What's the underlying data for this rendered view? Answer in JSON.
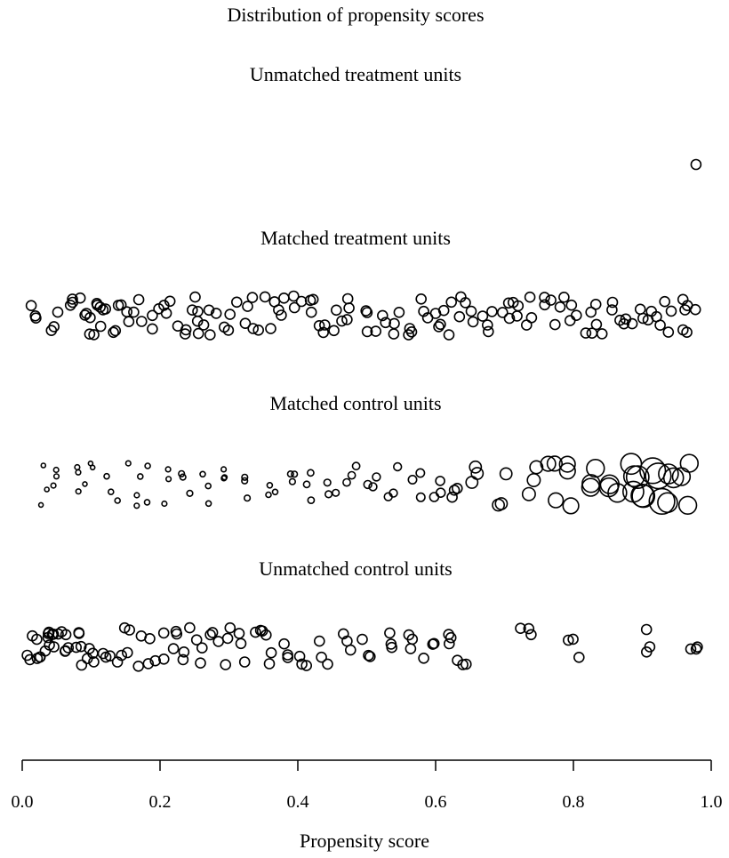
{
  "chart_data": {
    "type": "scatter",
    "title": "Distribution of propensity scores",
    "xlabel": "Propensity score",
    "xlim": [
      0.0,
      1.0
    ],
    "xticks": [
      "0.0",
      "0.2",
      "0.4",
      "0.6",
      "0.8",
      "1.0"
    ],
    "grid": false,
    "series": [
      {
        "name": "Unmatched treatment units",
        "points": [
          {
            "x": 0.978,
            "r": 1.0
          }
        ]
      },
      {
        "name": "Matched treatment units",
        "points": [
          {
            "x": 0.02,
            "r": 1.0
          },
          {
            "x": 0.05,
            "r": 1.0
          },
          {
            "x": 0.07,
            "r": 1.0
          },
          {
            "x": 0.09,
            "r": 1.0
          },
          {
            "x": 0.1,
            "r": 1.0
          },
          {
            "x": 0.11,
            "r": 1.0
          },
          {
            "x": 0.12,
            "r": 1.0
          },
          {
            "x": 0.14,
            "r": 1.0
          },
          {
            "x": 0.15,
            "r": 1.0
          },
          {
            "x": 0.17,
            "r": 1.0
          },
          {
            "x": 0.19,
            "r": 1.0
          },
          {
            "x": 0.21,
            "r": 1.0
          },
          {
            "x": 0.23,
            "r": 1.0
          },
          {
            "x": 0.25,
            "r": 1.0
          },
          {
            "x": 0.26,
            "r": 1.0
          },
          {
            "x": 0.28,
            "r": 1.0
          },
          {
            "x": 0.3,
            "r": 1.0
          },
          {
            "x": 0.32,
            "r": 1.0
          },
          {
            "x": 0.34,
            "r": 1.0
          },
          {
            "x": 0.36,
            "r": 1.0
          },
          {
            "x": 0.38,
            "r": 1.0
          },
          {
            "x": 0.4,
            "r": 1.0
          },
          {
            "x": 0.42,
            "r": 1.0
          },
          {
            "x": 0.44,
            "r": 1.0
          },
          {
            "x": 0.46,
            "r": 1.0
          },
          {
            "x": 0.48,
            "r": 1.0
          },
          {
            "x": 0.5,
            "r": 1.0
          },
          {
            "x": 0.52,
            "r": 1.0
          },
          {
            "x": 0.54,
            "r": 1.0
          },
          {
            "x": 0.56,
            "r": 1.0
          },
          {
            "x": 0.58,
            "r": 1.0
          },
          {
            "x": 0.6,
            "r": 1.0
          },
          {
            "x": 0.62,
            "r": 1.0
          },
          {
            "x": 0.64,
            "r": 1.0
          },
          {
            "x": 0.66,
            "r": 1.0
          },
          {
            "x": 0.68,
            "r": 1.0
          },
          {
            "x": 0.7,
            "r": 1.0
          },
          {
            "x": 0.72,
            "r": 1.0
          },
          {
            "x": 0.74,
            "r": 1.0
          },
          {
            "x": 0.76,
            "r": 1.0
          },
          {
            "x": 0.78,
            "r": 1.0
          },
          {
            "x": 0.8,
            "r": 1.0
          },
          {
            "x": 0.82,
            "r": 1.0
          },
          {
            "x": 0.84,
            "r": 1.0
          },
          {
            "x": 0.86,
            "r": 1.0
          },
          {
            "x": 0.88,
            "r": 1.0
          },
          {
            "x": 0.9,
            "r": 1.0
          },
          {
            "x": 0.92,
            "r": 1.0
          },
          {
            "x": 0.94,
            "r": 1.0
          },
          {
            "x": 0.96,
            "r": 1.0
          },
          {
            "x": 0.97,
            "r": 1.0
          }
        ]
      },
      {
        "name": "Matched control units",
        "points": [
          {
            "x": 0.03,
            "r": 0.45
          },
          {
            "x": 0.05,
            "r": 0.5
          },
          {
            "x": 0.08,
            "r": 0.5
          },
          {
            "x": 0.1,
            "r": 0.45
          },
          {
            "x": 0.13,
            "r": 0.55
          },
          {
            "x": 0.16,
            "r": 0.5
          },
          {
            "x": 0.18,
            "r": 0.55
          },
          {
            "x": 0.21,
            "r": 0.5
          },
          {
            "x": 0.24,
            "r": 0.6
          },
          {
            "x": 0.27,
            "r": 0.55
          },
          {
            "x": 0.3,
            "r": 0.5
          },
          {
            "x": 0.33,
            "r": 0.6
          },
          {
            "x": 0.36,
            "r": 0.55
          },
          {
            "x": 0.39,
            "r": 0.6
          },
          {
            "x": 0.42,
            "r": 0.65
          },
          {
            "x": 0.45,
            "r": 0.7
          },
          {
            "x": 0.48,
            "r": 0.75
          },
          {
            "x": 0.51,
            "r": 0.8
          },
          {
            "x": 0.54,
            "r": 0.8
          },
          {
            "x": 0.57,
            "r": 0.85
          },
          {
            "x": 0.6,
            "r": 0.9
          },
          {
            "x": 0.63,
            "r": 1.0
          },
          {
            "x": 0.66,
            "r": 1.2
          },
          {
            "x": 0.7,
            "r": 1.2
          },
          {
            "x": 0.74,
            "r": 1.3
          },
          {
            "x": 0.77,
            "r": 1.5
          },
          {
            "x": 0.8,
            "r": 1.6
          },
          {
            "x": 0.83,
            "r": 1.8
          },
          {
            "x": 0.86,
            "r": 1.9
          },
          {
            "x": 0.88,
            "r": 2.1
          },
          {
            "x": 0.9,
            "r": 2.3
          },
          {
            "x": 0.92,
            "r": 2.6
          },
          {
            "x": 0.94,
            "r": 2.0
          },
          {
            "x": 0.96,
            "r": 1.8
          }
        ]
      },
      {
        "name": "Unmatched control units",
        "points": [
          {
            "x": 0.01,
            "r": 1.0
          },
          {
            "x": 0.02,
            "r": 1.0
          },
          {
            "x": 0.03,
            "r": 1.0
          },
          {
            "x": 0.04,
            "r": 1.0
          },
          {
            "x": 0.05,
            "r": 1.0
          },
          {
            "x": 0.06,
            "r": 1.0
          },
          {
            "x": 0.07,
            "r": 1.0
          },
          {
            "x": 0.08,
            "r": 1.0
          },
          {
            "x": 0.09,
            "r": 1.0
          },
          {
            "x": 0.1,
            "r": 1.0
          },
          {
            "x": 0.12,
            "r": 1.0
          },
          {
            "x": 0.14,
            "r": 1.0
          },
          {
            "x": 0.16,
            "r": 1.0
          },
          {
            "x": 0.18,
            "r": 1.0
          },
          {
            "x": 0.2,
            "r": 1.0
          },
          {
            "x": 0.22,
            "r": 1.0
          },
          {
            "x": 0.24,
            "r": 1.0
          },
          {
            "x": 0.26,
            "r": 1.0
          },
          {
            "x": 0.28,
            "r": 1.0
          },
          {
            "x": 0.3,
            "r": 1.0
          },
          {
            "x": 0.32,
            "r": 1.0
          },
          {
            "x": 0.34,
            "r": 1.0
          },
          {
            "x": 0.36,
            "r": 1.0
          },
          {
            "x": 0.38,
            "r": 1.0
          },
          {
            "x": 0.41,
            "r": 1.0
          },
          {
            "x": 0.44,
            "r": 1.0
          },
          {
            "x": 0.47,
            "r": 1.0
          },
          {
            "x": 0.5,
            "r": 1.0
          },
          {
            "x": 0.53,
            "r": 1.0
          },
          {
            "x": 0.56,
            "r": 1.0
          },
          {
            "x": 0.59,
            "r": 1.0
          },
          {
            "x": 0.62,
            "r": 1.0
          },
          {
            "x": 0.64,
            "r": 1.0
          },
          {
            "x": 0.73,
            "r": 1.0
          },
          {
            "x": 0.8,
            "r": 1.0
          },
          {
            "x": 0.91,
            "r": 1.0
          },
          {
            "x": 0.975,
            "r": 1.0
          }
        ]
      }
    ]
  }
}
